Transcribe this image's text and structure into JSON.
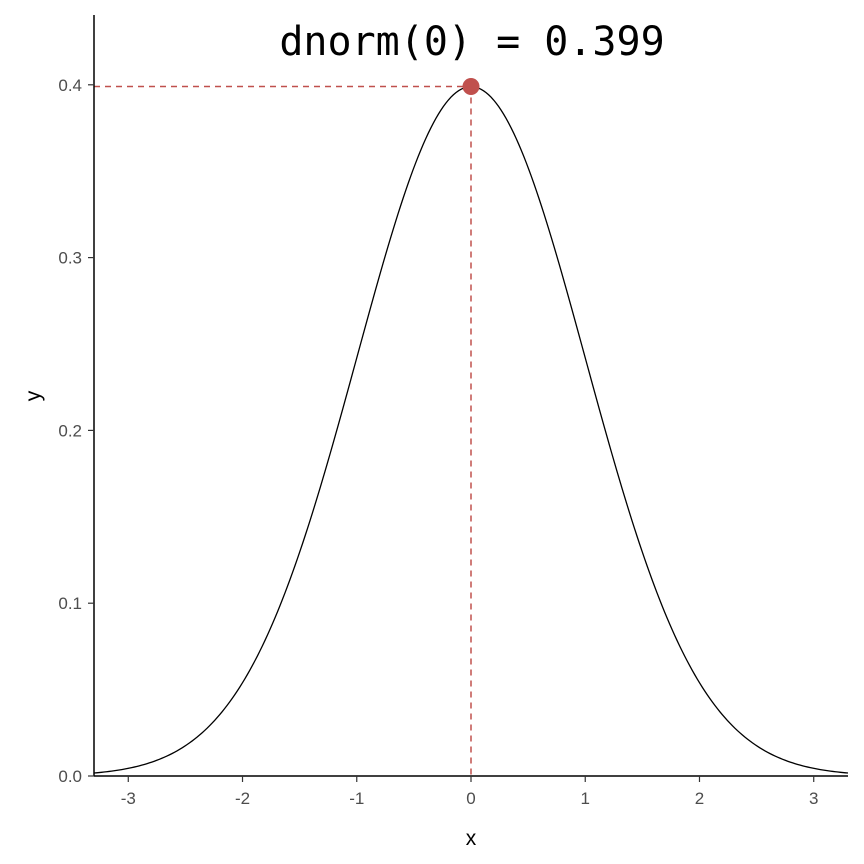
{
  "chart_data": {
    "type": "line",
    "title": "",
    "xlabel": "x",
    "ylabel": "y",
    "xlim": [
      -3.3,
      3.3
    ],
    "ylim": [
      0,
      0.42
    ],
    "x_ticks": [
      -3,
      -2,
      -1,
      0,
      1,
      2,
      3
    ],
    "x_tick_labels": [
      "-3",
      "-2",
      "-1",
      "0",
      "1",
      "2",
      "3"
    ],
    "y_ticks": [
      0.0,
      0.1,
      0.2,
      0.3,
      0.4
    ],
    "y_tick_labels": [
      "0.0",
      "0.1",
      "0.2",
      "0.3",
      "0.4"
    ],
    "grid": false,
    "series": [
      {
        "x": [
          -3.3,
          -3.0,
          -2.7,
          -2.4,
          -2.1,
          -1.8,
          -1.5,
          -1.2,
          -0.9,
          -0.6,
          -0.3,
          0.0,
          0.3,
          0.6,
          0.9,
          1.2,
          1.5,
          1.8,
          2.1,
          2.4,
          2.7,
          3.0,
          3.3
        ],
        "values": [
          0.0017,
          0.0044,
          0.0104,
          0.0224,
          0.044,
          0.079,
          0.1295,
          0.1942,
          0.2661,
          0.3332,
          0.3814,
          0.3989,
          0.3814,
          0.3332,
          0.2661,
          0.1942,
          0.1295,
          0.079,
          0.044,
          0.0224,
          0.0104,
          0.0044,
          0.0017
        ],
        "color": "#000000"
      }
    ],
    "highlight_point": {
      "x": 0,
      "y": 0.399,
      "color": "#c0504d"
    },
    "annotation": "dnorm(0) = 0.399",
    "guide_color": "#c0504d"
  }
}
